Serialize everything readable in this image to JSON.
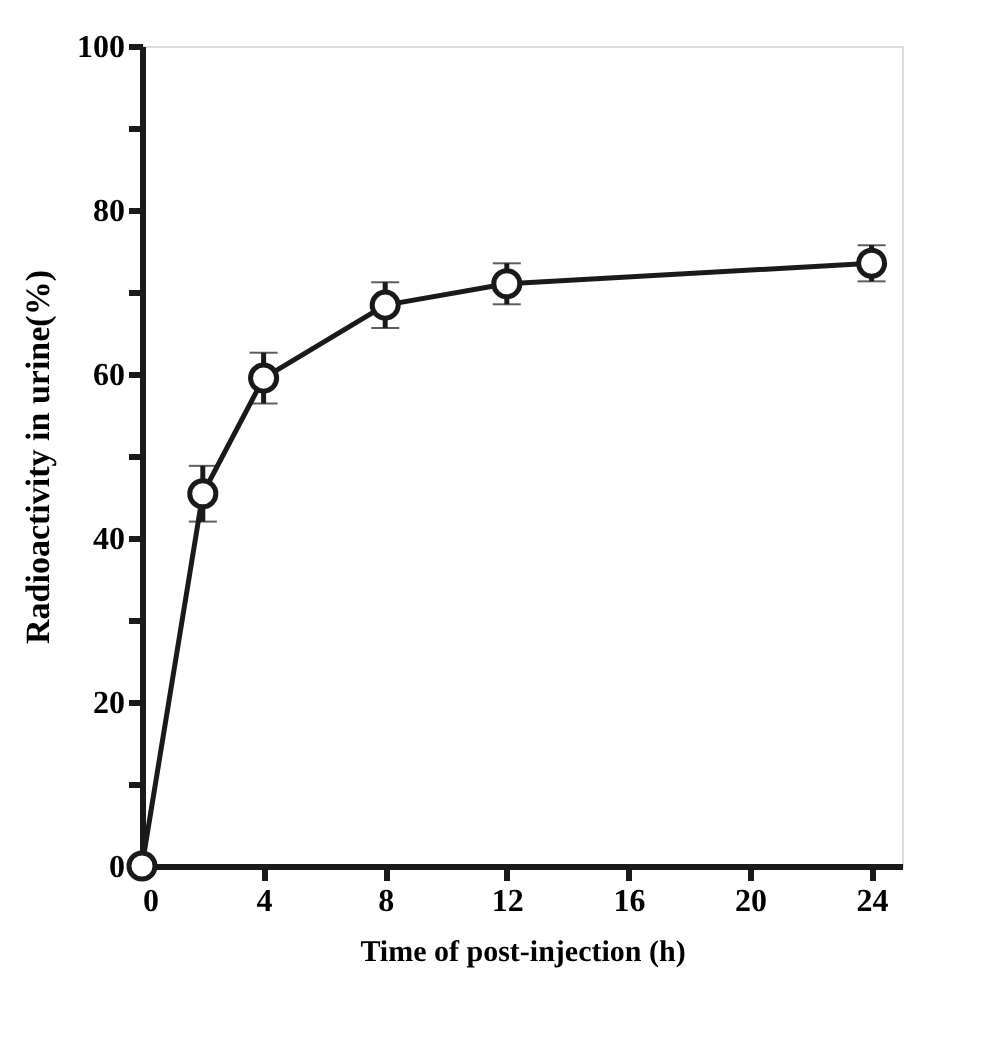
{
  "chart_data": {
    "type": "line",
    "xlabel": "Time of post-injection (h)",
    "ylabel": "Radioactivity in urine(%)",
    "x": [
      0,
      2,
      4,
      8,
      12,
      24
    ],
    "series": [
      {
        "color": "#1a1a1a",
        "values": [
          0,
          45.4,
          59.5,
          68.4,
          71.0,
          73.5
        ],
        "errors": [
          null,
          3.4,
          3.1,
          2.8,
          2.5,
          2.2
        ]
      }
    ],
    "xlim": [
      0,
      25
    ],
    "xticks": [
      0,
      4,
      8,
      12,
      16,
      20,
      24
    ],
    "ylim": [
      0,
      100
    ],
    "yticks": [
      0,
      {
        "value": 10,
        "label": null
      },
      20,
      {
        "value": 30,
        "label": null
      },
      40,
      {
        "value": 50,
        "label": null
      },
      60,
      {
        "value": 70,
        "label": null
      },
      80,
      {
        "value": 90,
        "label": null
      },
      100
    ],
    "grid": false,
    "marker": "circle",
    "line_style": "solid"
  }
}
